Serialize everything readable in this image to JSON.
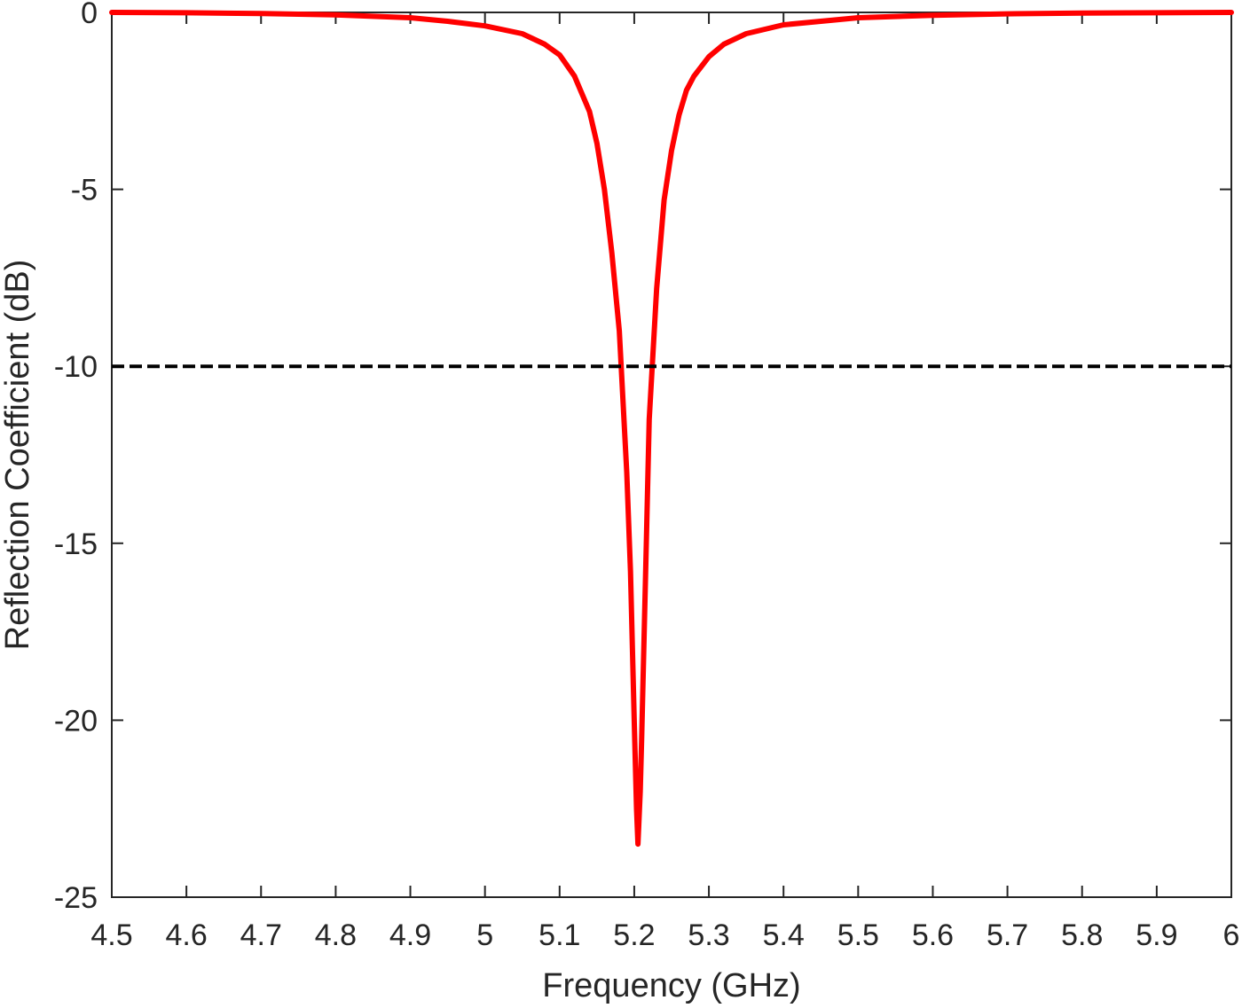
{
  "chart_data": {
    "type": "line",
    "xlabel": "Frequency (GHz)",
    "ylabel": "Reflection Coefficient (dB)",
    "xlim": [
      4.5,
      6
    ],
    "ylim": [
      -25,
      0
    ],
    "xticks": [
      4.5,
      4.6,
      4.7,
      4.8,
      4.9,
      5,
      5.1,
      5.2,
      5.3,
      5.4,
      5.5,
      5.6,
      5.7,
      5.8,
      5.9,
      6
    ],
    "xtick_labels": [
      "4.5",
      "4.6",
      "4.7",
      "4.8",
      "4.9",
      "5",
      "5.1",
      "5.2",
      "5.3",
      "5.4",
      "5.5",
      "5.6",
      "5.7",
      "5.8",
      "5.9",
      "6"
    ],
    "yticks": [
      0,
      -5,
      -10,
      -15,
      -20,
      -25
    ],
    "ytick_labels": [
      "0",
      "-5",
      "-10",
      "-15",
      "-20",
      "-25"
    ],
    "grid": false,
    "series": [
      {
        "color": "#ff0000",
        "style": "solid",
        "x": [
          4.5,
          4.6,
          4.7,
          4.8,
          4.9,
          4.95,
          5.0,
          5.05,
          5.08,
          5.1,
          5.12,
          5.14,
          5.15,
          5.16,
          5.17,
          5.18,
          5.19,
          5.195,
          5.2,
          5.203,
          5.205,
          5.208,
          5.21,
          5.215,
          5.22,
          5.23,
          5.24,
          5.25,
          5.26,
          5.27,
          5.28,
          5.3,
          5.32,
          5.35,
          5.4,
          5.5,
          5.6,
          5.7,
          5.8,
          5.9,
          6.0
        ],
        "y": [
          0.0,
          -0.01,
          -0.03,
          -0.07,
          -0.15,
          -0.25,
          -0.38,
          -0.6,
          -0.9,
          -1.2,
          -1.8,
          -2.8,
          -3.7,
          -5.0,
          -6.8,
          -9.0,
          -13.0,
          -15.8,
          -20.0,
          -22.5,
          -23.5,
          -22.0,
          -20.5,
          -16.0,
          -11.5,
          -7.8,
          -5.3,
          -3.9,
          -2.9,
          -2.2,
          -1.8,
          -1.25,
          -0.9,
          -0.6,
          -0.35,
          -0.15,
          -0.08,
          -0.04,
          -0.02,
          -0.01,
          0.0
        ]
      },
      {
        "color": "#000000",
        "style": "dashed",
        "x": [
          4.5,
          6.0
        ],
        "y": [
          -10,
          -10
        ]
      }
    ]
  }
}
